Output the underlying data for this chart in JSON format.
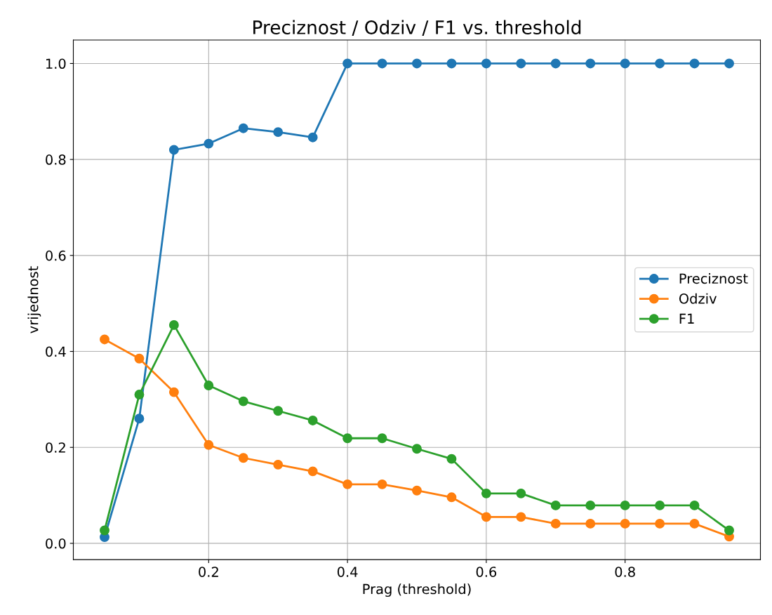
{
  "chart_data": {
    "type": "line",
    "title": "Preciznost / Odziv / F1 vs. threshold",
    "xlabel": "Prag (threshold)",
    "ylabel": "vrijednost",
    "x": [
      0.05,
      0.1,
      0.15,
      0.2,
      0.25,
      0.3,
      0.35,
      0.4,
      0.45,
      0.5,
      0.55,
      0.6,
      0.65,
      0.7,
      0.75,
      0.8,
      0.85,
      0.9,
      0.95
    ],
    "series": [
      {
        "name": "Preciznost",
        "color": "#1f77b4",
        "values": [
          0.013,
          0.26,
          0.82,
          0.833,
          0.865,
          0.857,
          0.846,
          1.0,
          1.0,
          1.0,
          1.0,
          1.0,
          1.0,
          1.0,
          1.0,
          1.0,
          1.0,
          1.0,
          1.0
        ]
      },
      {
        "name": "Odziv",
        "color": "#ff7f0e",
        "values": [
          0.425,
          0.385,
          0.315,
          0.205,
          0.178,
          0.164,
          0.15,
          0.123,
          0.123,
          0.11,
          0.096,
          0.055,
          0.055,
          0.041,
          0.041,
          0.041,
          0.041,
          0.041,
          0.014
        ]
      },
      {
        "name": "F1",
        "color": "#2ca02c",
        "values": [
          0.027,
          0.31,
          0.455,
          0.329,
          0.296,
          0.276,
          0.256,
          0.219,
          0.219,
          0.197,
          0.176,
          0.104,
          0.104,
          0.079,
          0.079,
          0.079,
          0.079,
          0.079,
          0.027
        ]
      }
    ],
    "xlim": [
      0.005,
      0.995
    ],
    "xticks": [
      0.2,
      0.4,
      0.6,
      0.8
    ],
    "ylim": [
      -0.034,
      1.049
    ],
    "yticks": [
      {
        "value": 0,
        "label": "0.0"
      },
      {
        "value": 0.2,
        "label": "0.2"
      },
      {
        "value": 0.4,
        "label": "0.4"
      },
      {
        "value": 0.6,
        "label": "0.6"
      },
      {
        "value": 0.8,
        "label": "0.8"
      },
      {
        "value": 1,
        "label": "1.0"
      }
    ],
    "grid": true,
    "legend": "center right",
    "marker": "circle",
    "line_style": "solid"
  }
}
